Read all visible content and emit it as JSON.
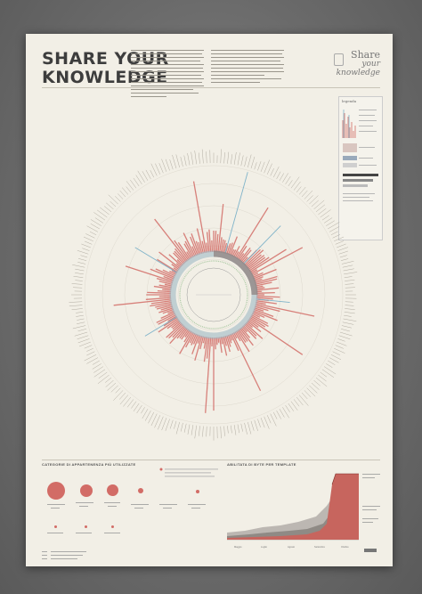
{
  "poster": {
    "title_line1": "SHARE YOUR",
    "title_line2": "KNOWLEDGE",
    "brand_line1": "Share",
    "brand_line2": "your",
    "brand_line3": "knowledge"
  },
  "legend": {
    "title": "legenda"
  },
  "sections": {
    "categories_title": "CATEGORIE DI APPARTENENZA PIÙ UTILIZZATE",
    "activity_title": "ABILITATA DI BYTE PER TEMPLATE"
  },
  "timeline": {
    "months": [
      "Maggio",
      "Luglio",
      "Agosto",
      "Settembre",
      "Ottobre"
    ]
  },
  "colors": {
    "accent": "#d26c66",
    "teal": "#7fb3c9",
    "grey": "#8a8a8a",
    "paper": "#f2efe6"
  }
}
